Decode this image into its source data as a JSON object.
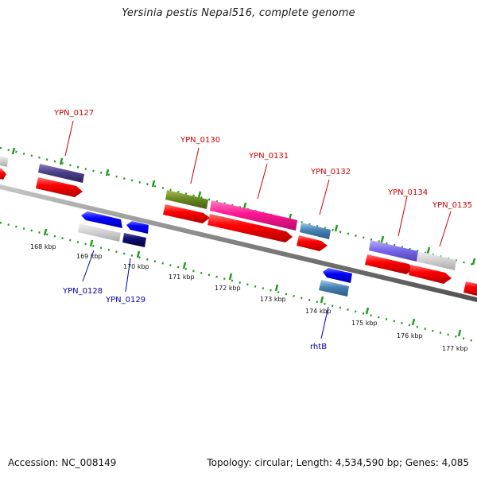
{
  "title": "Yersinia pestis Nepal516, complete genome",
  "footer": {
    "accession": "Accession: NC_008149",
    "stats": "Topology: circular; Length: 4,534,590 bp; Genes: 4,085"
  },
  "colors": {
    "backbone": "#808080",
    "tick": "#229922",
    "fwd_label": "#cc0000",
    "rev_label": "#0000aa",
    "scale_label": "#111111"
  },
  "scale_labels": [
    "168 kbp",
    "169 kbp",
    "170 kbp",
    "171 kbp",
    "172 kbp",
    "173 kbp",
    "174 kbp",
    "175 kbp",
    "176 kbp",
    "177 kbp"
  ],
  "genes": {
    "forward_labels": [
      "YPN_0127",
      "YPN_0130",
      "YPN_0131",
      "YPN_0132",
      "YPN_0134",
      "YPN_0135"
    ],
    "reverse_labels": [
      "YPN_0128",
      "YPN_0129",
      "rhtB"
    ]
  }
}
